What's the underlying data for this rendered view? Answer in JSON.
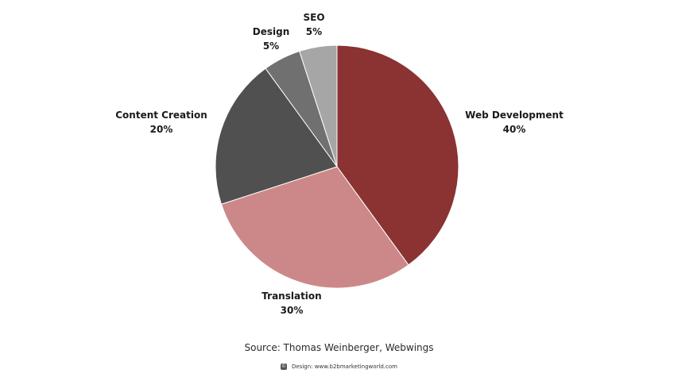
{
  "chart_data": {
    "type": "pie",
    "slices": [
      {
        "name": "Web Development",
        "value": 40,
        "value_label": "40%",
        "color": "#8b3232"
      },
      {
        "name": "Translation",
        "value": 30,
        "value_label": "30%",
        "color": "#cc8888"
      },
      {
        "name": "Content Creation",
        "value": 20,
        "value_label": "20%",
        "color": "#505050"
      },
      {
        "name": "Design",
        "value": 5,
        "value_label": "5%",
        "color": "#707070"
      },
      {
        "name": "SEO",
        "value": 5,
        "value_label": "5%",
        "color": "#a6a6a6"
      }
    ],
    "start": "12 o'clock",
    "direction": "clockwise",
    "legend": "none"
  },
  "source": "Source: Thomas Weinberger, Webwings",
  "credit": {
    "icon": "copyright-icon",
    "icon_glyph": "©",
    "text": "Design: www.b2bmarketingworld.com"
  }
}
